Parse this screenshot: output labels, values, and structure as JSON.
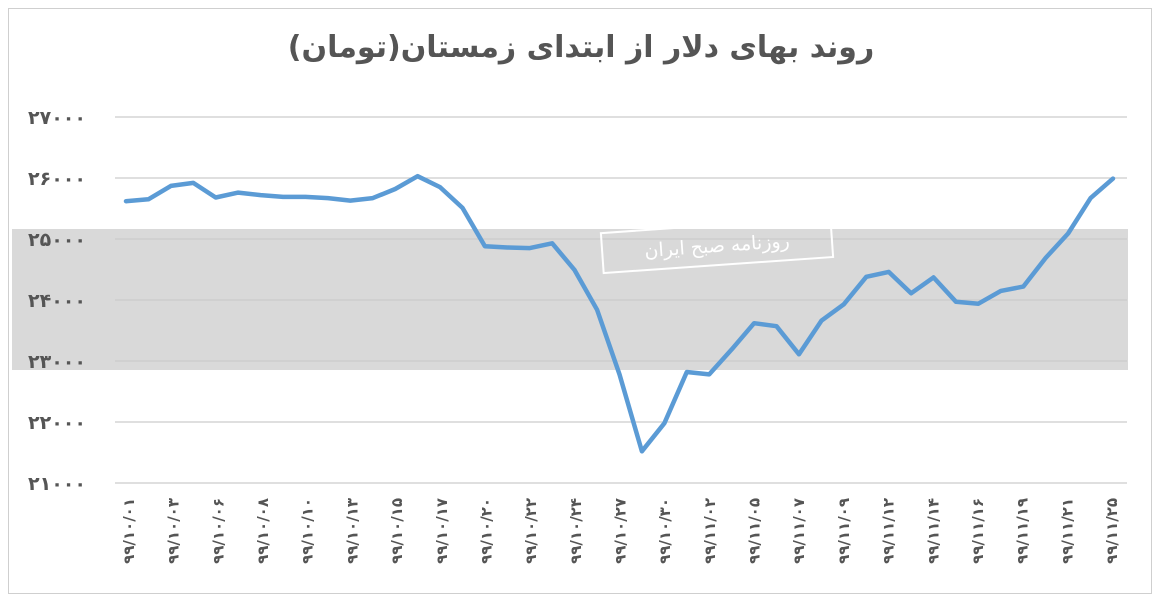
{
  "chart_data": {
    "type": "line",
    "title": "روند بهای دلار از ابتدای زمستان(تومان)",
    "xlabel": "",
    "ylabel": "",
    "ylim": [
      21000,
      27000
    ],
    "y_ticks": [
      "۲۷۰۰۰",
      "۲۶۰۰۰",
      "۲۵۰۰۰",
      "۲۴۰۰۰",
      "۲۳۰۰۰",
      "۲۲۰۰۰",
      "۲۱۰۰۰"
    ],
    "y_tick_values": [
      27000,
      26000,
      25000,
      24000,
      23000,
      22000,
      21000
    ],
    "x_tick_labels": [
      "۹۹/۱۰/۰۱",
      "۹۹/۱۰/۰۳",
      "۹۹/۱۰/۰۶",
      "۹۹/۱۰/۰۸",
      "۹۹/۱۰/۱۰",
      "۹۹/۱۰/۱۳",
      "۹۹/۱۰/۱۵",
      "۹۹/۱۰/۱۷",
      "۹۹/۱۰/۲۰",
      "۹۹/۱۰/۲۲",
      "۹۹/۱۰/۲۴",
      "۹۹/۱۰/۲۷",
      "۹۹/۱۰/۳۰",
      "۹۹/۱۱/۰۲",
      "۹۹/۱۱/۰۵",
      "۹۹/۱۱/۰۷",
      "۹۹/۱۱/۰۹",
      "۹۹/۱۱/۱۲",
      "۹۹/۱۱/۱۴",
      "۹۹/۱۱/۱۶",
      "۹۹/۱۱/۱۹",
      "۹۹/۱۱/۲۱",
      "۹۹/۱۱/۲۵"
    ],
    "grid": true,
    "series": [
      {
        "color": "#5b9bd5",
        "values": [
          25620,
          25650,
          25870,
          25920,
          25680,
          25760,
          25720,
          25690,
          25690,
          25670,
          25630,
          25670,
          25820,
          26030,
          25850,
          25510,
          24880,
          24860,
          24850,
          24930,
          24490,
          23840,
          22780,
          21520,
          21980,
          22820,
          22780,
          23190,
          23620,
          23570,
          23110,
          23660,
          23930,
          24380,
          24460,
          24110,
          24370,
          23970,
          23940,
          24150,
          24220,
          24690,
          25090,
          25670,
          25990
        ]
      }
    ]
  },
  "watermark": {
    "caption": "روزنامه صبح ایران",
    "band_color": "#d9d9d9"
  }
}
